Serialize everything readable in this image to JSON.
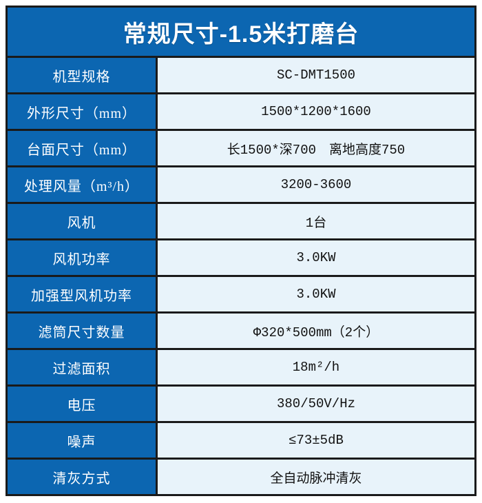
{
  "title": "常规尺寸-1.5米打磨台",
  "colors": {
    "page_bg": "#ffffff",
    "header_bg": "#0c66b1",
    "label_bg": "#0c66b1",
    "value_bg": "#e8f3fa",
    "border": "#1a1a1a",
    "title_color": "#ffffff",
    "label_color": "#ffffff",
    "value_color": "#111111"
  },
  "table": {
    "rows": [
      {
        "label": "机型规格",
        "value": "SC-DMT1500"
      },
      {
        "label": "外形尺寸（mm）",
        "value": "1500*1200*1600"
      },
      {
        "label": "台面尺寸（mm）",
        "value": "长1500*深700　离地高度750"
      },
      {
        "label": "处理风量（m³/h）",
        "value": "3200-3600"
      },
      {
        "label": "风机",
        "value": "1台"
      },
      {
        "label": "风机功率",
        "value": "3.0KW"
      },
      {
        "label": "加强型风机功率",
        "value": "3.0KW"
      },
      {
        "label": "滤筒尺寸数量",
        "value": "Φ320*500mm（2个）"
      },
      {
        "label": "过滤面积",
        "value": "18m²/h"
      },
      {
        "label": "电压",
        "value": "380/50V/Hz"
      },
      {
        "label": "噪声",
        "value": "≤73±5dB"
      },
      {
        "label": "清灰方式",
        "value": "全自动脉冲清灰"
      }
    ]
  }
}
